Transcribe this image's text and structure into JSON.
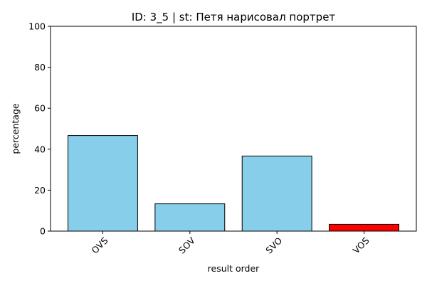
{
  "chart_data": {
    "type": "bar",
    "title": "ID: 3_5 | st: Петя нарисовал портрет",
    "xlabel": "result order",
    "ylabel": "percentage",
    "categories": [
      "OVS",
      "SOV",
      "SVO",
      "VOS"
    ],
    "values": [
      46.67,
      13.33,
      36.67,
      3.33
    ],
    "bar_colors": [
      "#87CEEB",
      "#87CEEB",
      "#87CEEB",
      "#FF0000"
    ],
    "edge_color": "#000000",
    "ylim": [
      0,
      100
    ],
    "yticks": [
      "0",
      "20",
      "40",
      "60",
      "80",
      "100"
    ],
    "grid": false,
    "legend": "none"
  }
}
